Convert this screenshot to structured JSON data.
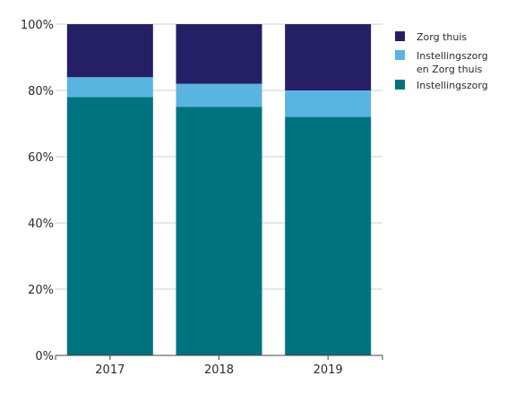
{
  "chart_data": {
    "type": "bar",
    "stacked": true,
    "categories": [
      "2017",
      "2018",
      "2019"
    ],
    "series": [
      {
        "name": "Instellingszorg",
        "values": [
          78,
          75,
          72
        ],
        "color": "#007380"
      },
      {
        "name": "Instellingszorg en Zorg thuis",
        "values": [
          6,
          7,
          8
        ],
        "color": "#5ab4e0"
      },
      {
        "name": "Zorg thuis",
        "values": [
          16,
          18,
          20
        ],
        "color": "#251f66"
      }
    ],
    "legend": {
      "placement": "right",
      "items": [
        {
          "lines": [
            "Zorg thuis"
          ],
          "color": "#251f66"
        },
        {
          "lines": [
            "Instellingszorg",
            "en Zorg thuis"
          ],
          "color": "#5ab4e0"
        },
        {
          "lines": [
            "Instellingszorg"
          ],
          "color": "#007380"
        }
      ]
    },
    "yticks": [
      "0%",
      "20%",
      "40%",
      "60%",
      "80%",
      "100%"
    ],
    "ylim": [
      0,
      100
    ],
    "grid": true,
    "grid_color": "#cfcfcf",
    "axis_color": "#444444"
  }
}
